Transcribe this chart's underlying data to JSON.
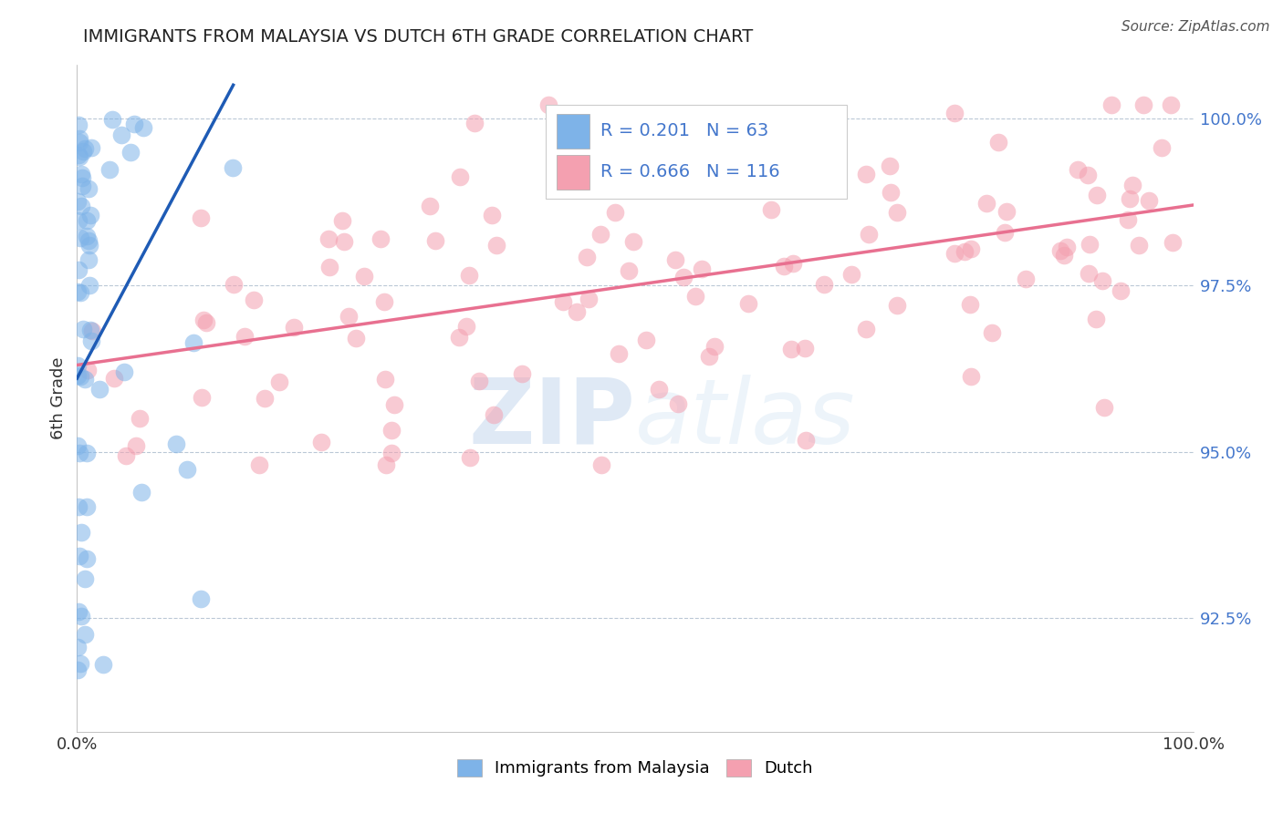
{
  "title": "IMMIGRANTS FROM MALAYSIA VS DUTCH 6TH GRADE CORRELATION CHART",
  "source_text": "Source: ZipAtlas.com",
  "ylabel": "6th Grade",
  "xlim": [
    0.0,
    1.0
  ],
  "ylim": [
    0.908,
    1.008
  ],
  "yticks": [
    0.925,
    0.95,
    0.975,
    1.0
  ],
  "ytick_labels": [
    "92.5%",
    "95.0%",
    "97.5%",
    "100.0%"
  ],
  "xtick_labels": [
    "0.0%",
    "100.0%"
  ],
  "xticks": [
    0.0,
    1.0
  ],
  "legend_blue_label": "Immigrants from Malaysia",
  "legend_pink_label": "Dutch",
  "blue_color": "#7EB3E8",
  "pink_color": "#F4A0B0",
  "blue_line_color": "#1E5BB5",
  "pink_line_color": "#E87090",
  "watermark_zip": "ZIP",
  "watermark_atlas": "atlas",
  "blue_line_x": [
    0.0,
    0.14
  ],
  "blue_line_y": [
    0.961,
    1.005
  ],
  "pink_line_x": [
    0.0,
    1.0
  ],
  "pink_line_y": [
    0.963,
    0.987
  ],
  "legend_blue_r": "R = 0.201",
  "legend_blue_n": "N = 63",
  "legend_pink_r": "R = 0.666",
  "legend_pink_n": "N = 116"
}
